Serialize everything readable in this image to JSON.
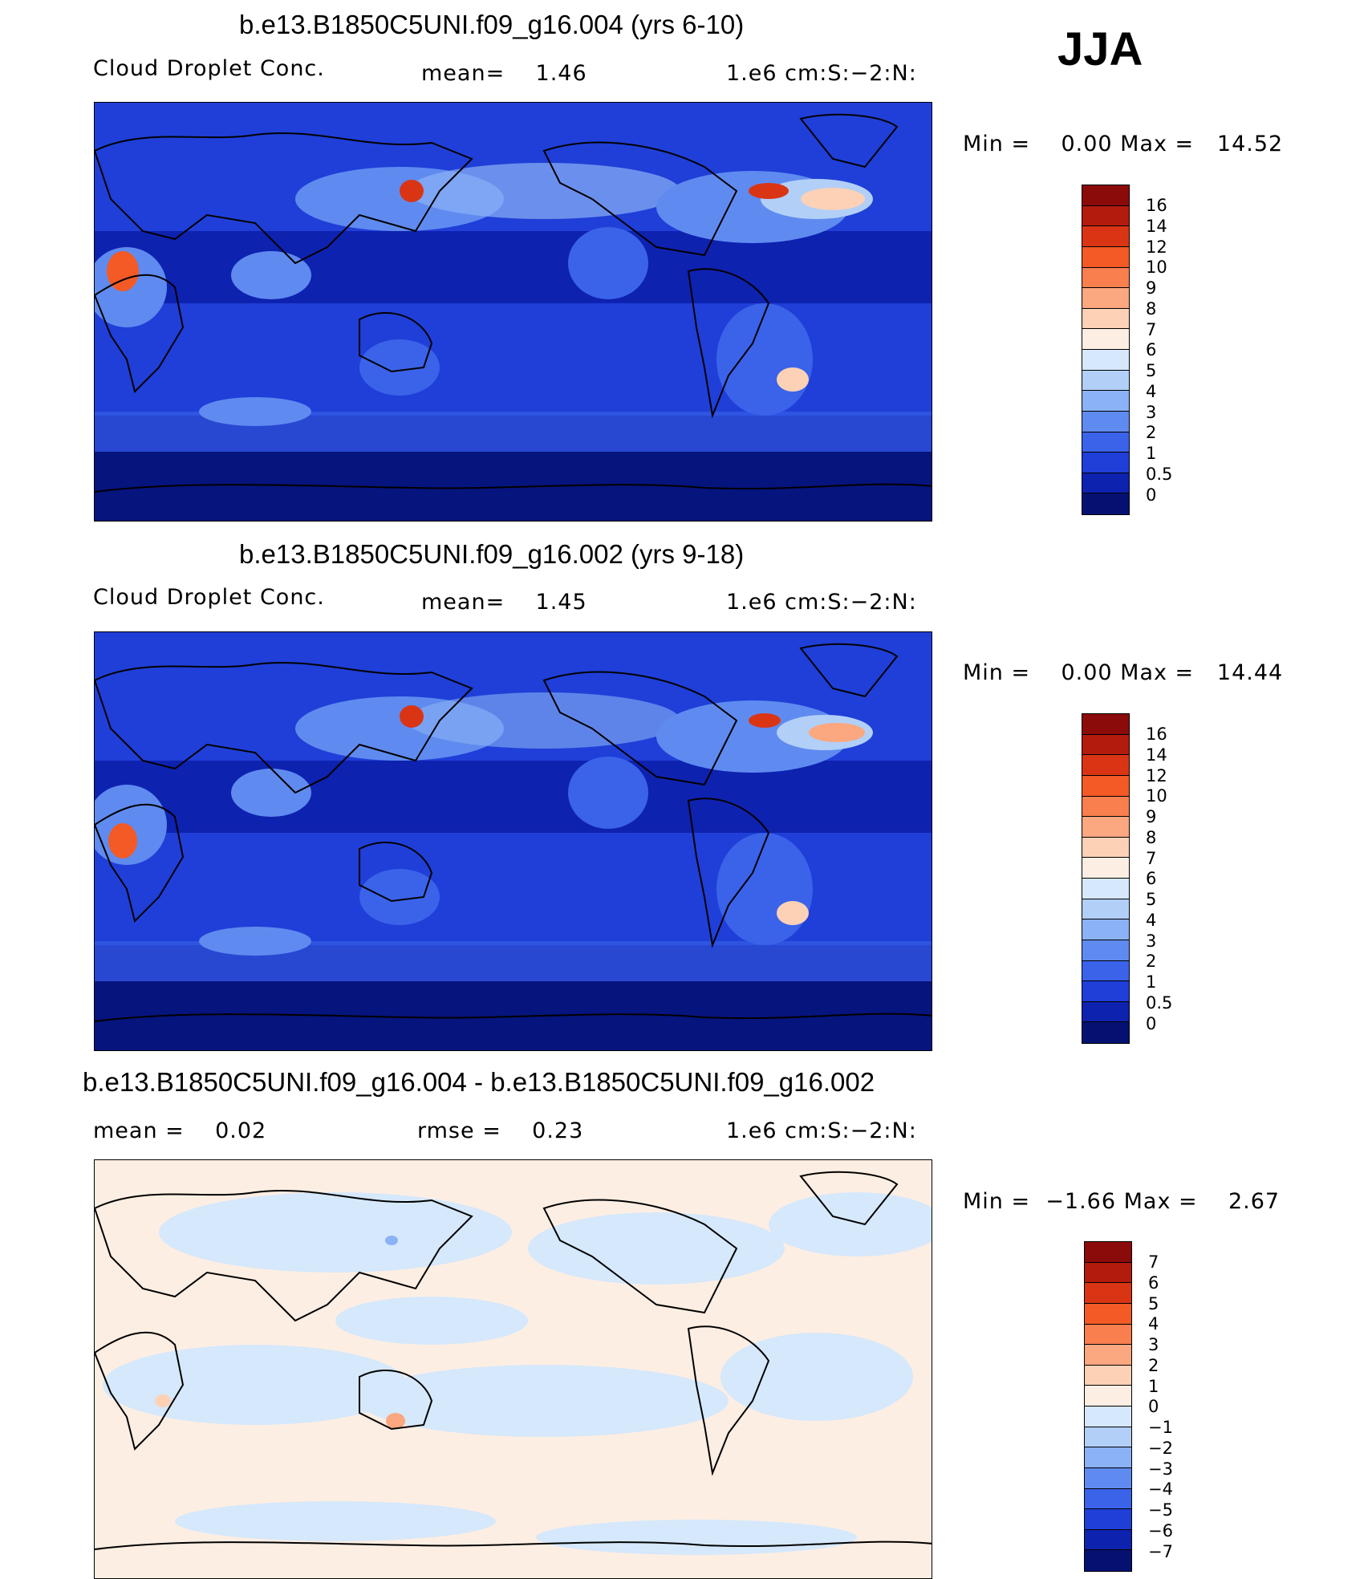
{
  "season": "JJA",
  "panels": [
    {
      "title": "b.e13.B1850C5UNI.f09_g16.004 (yrs 6-10)",
      "left_text": "Cloud Droplet Conc.",
      "mid_text": "mean=    1.46",
      "units": "1.e6 cm:S:−2:N:",
      "minmax": "Min =    0.00 Max =   14.52",
      "colorbar": {
        "labels": [
          "16",
          "14",
          "12",
          "10",
          "9",
          "8",
          "7",
          "6",
          "5",
          "4",
          "3",
          "2",
          "1",
          "0.5",
          "0"
        ],
        "colors": [
          "#8b0a0a",
          "#b31b0c",
          "#d93515",
          "#f35a25",
          "#f97f4e",
          "#fba77f",
          "#fcd1b6",
          "#fdeee3",
          "#d6e8fb",
          "#b2cff8",
          "#8bb2f5",
          "#5f8bf0",
          "#3a63ea",
          "#1f3fd8",
          "#0e22b0",
          "#051171"
        ]
      }
    },
    {
      "title": "b.e13.B1850C5UNI.f09_g16.002 (yrs 9-18)",
      "left_text": "Cloud Droplet Conc.",
      "mid_text": "mean=    1.45",
      "units": "1.e6 cm:S:−2:N:",
      "minmax": "Min =    0.00 Max =   14.44",
      "colorbar": {
        "labels": [
          "16",
          "14",
          "12",
          "10",
          "9",
          "8",
          "7",
          "6",
          "5",
          "4",
          "3",
          "2",
          "1",
          "0.5",
          "0"
        ],
        "colors": [
          "#8b0a0a",
          "#b31b0c",
          "#d93515",
          "#f35a25",
          "#f97f4e",
          "#fba77f",
          "#fcd1b6",
          "#fdeee3",
          "#d6e8fb",
          "#b2cff8",
          "#8bb2f5",
          "#5f8bf0",
          "#3a63ea",
          "#1f3fd8",
          "#0e22b0",
          "#051171"
        ]
      }
    },
    {
      "title": "b.e13.B1850C5UNI.f09_g16.004 - b.e13.B1850C5UNI.f09_g16.002",
      "left_text": "mean =    0.02",
      "mid_text": "rmse =    0.23",
      "units": "1.e6 cm:S:−2:N:",
      "minmax": "Min =  −1.66 Max =    2.67",
      "colorbar": {
        "labels": [
          "7",
          "6",
          "5",
          "4",
          "3",
          "2",
          "1",
          "0",
          "−1",
          "−2",
          "−3",
          "−4",
          "−5",
          "−6",
          "−7"
        ],
        "colors": [
          "#8b0a0a",
          "#b31b0c",
          "#d93515",
          "#f35a25",
          "#f97f4e",
          "#fba77f",
          "#fcd1b6",
          "#fdeee3",
          "#d6e8fb",
          "#b2cff8",
          "#8bb2f5",
          "#5f8bf0",
          "#3a63ea",
          "#1f3fd8",
          "#0e22b0",
          "#051171"
        ]
      }
    }
  ]
}
